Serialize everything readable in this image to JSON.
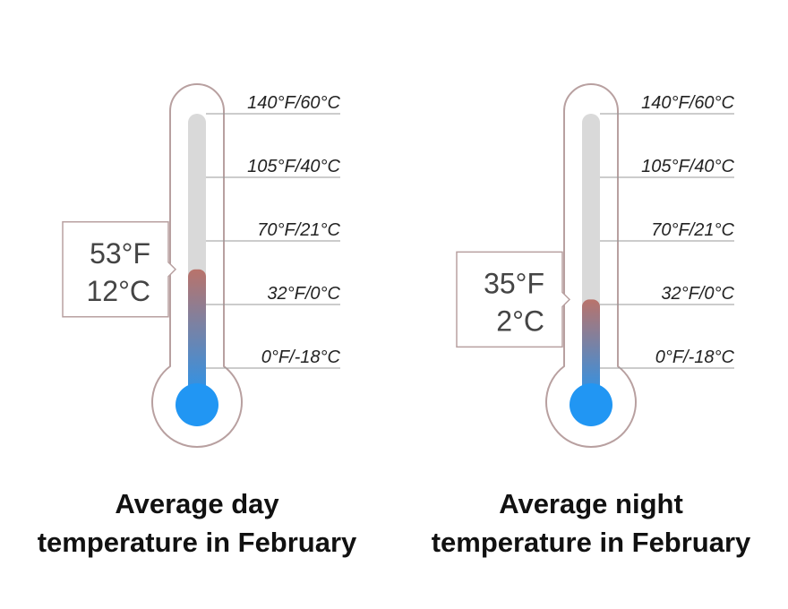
{
  "chart_data": [
    {
      "type": "thermometer",
      "title_lines": [
        "Average day",
        "temperature in February"
      ],
      "values": [
        53,
        12
      ],
      "value_labels": [
        "53°F",
        "12°C"
      ],
      "ylim": [
        0,
        140
      ],
      "yticks": [
        {
          "value": 140,
          "label": "140°F/60°C"
        },
        {
          "value": 105,
          "label": "105°F/40°C"
        },
        {
          "value": 70,
          "label": "70°F/21°C"
        },
        {
          "value": 32,
          "label": "32°F/0°C"
        },
        {
          "value": 0,
          "label": "0°F/-18°C"
        }
      ]
    },
    {
      "type": "thermometer",
      "title_lines": [
        "Average night",
        "temperature in February"
      ],
      "values": [
        35,
        2
      ],
      "value_labels": [
        "35°F",
        "2°C"
      ],
      "ylim": [
        0,
        140
      ],
      "yticks": [
        {
          "value": 140,
          "label": "140°F/60°C"
        },
        {
          "value": 105,
          "label": "105°F/40°C"
        },
        {
          "value": 70,
          "label": "70°F/21°C"
        },
        {
          "value": 32,
          "label": "32°F/0°C"
        },
        {
          "value": 0,
          "label": "0°F/-18°C"
        }
      ]
    }
  ]
}
